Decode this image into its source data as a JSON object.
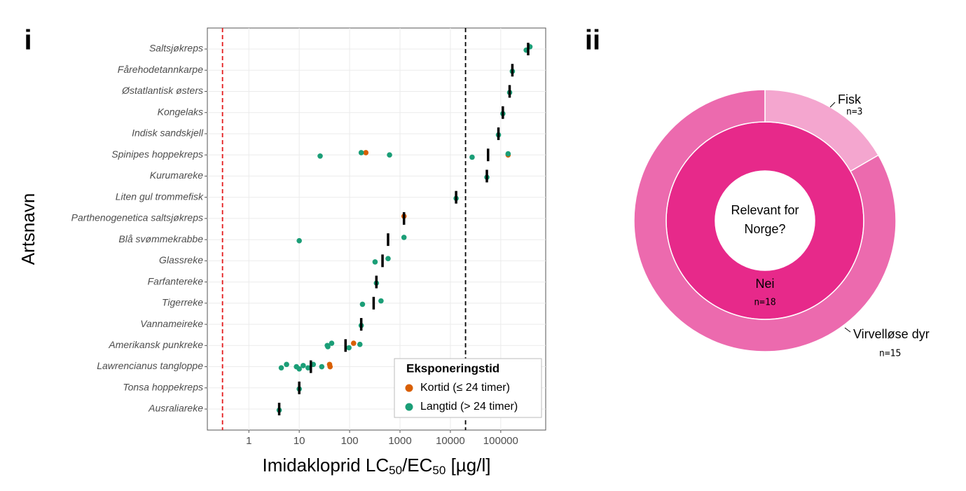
{
  "chart_data": [
    {
      "type": "dot",
      "panel_label": "i",
      "x_label": [
        "Imidakloprid LC",
        "50",
        "/EC",
        "50",
        " [µg/l]"
      ],
      "y_label": "Artsnavn",
      "xscale": "log",
      "xlim": [
        0.15,
        780000
      ],
      "xticks": [
        1,
        10,
        100,
        1000,
        10000,
        100000
      ],
      "grid": true,
      "categories": [
        "Saltsjøkreps",
        "Fårehodetannkarpe",
        "Østatlantisk østers",
        "Kongelaks",
        "Indisk sandskjell",
        "Spinipes hoppekreps",
        "Kurumareke",
        "Liten gul trommefisk",
        "Parthenogenetica saltsjøkreps",
        "Blå svømmekrabbe",
        "Glassreke",
        "Farfantereke",
        "Tigerreke",
        "Vannameireke",
        "Amerikansk punkreke",
        "Lawrencianus tangloppe",
        "Tonsa hoppekreps",
        "Ausraliareke"
      ],
      "series": [
        {
          "name": "Kortid (≤ 24 timer)",
          "color": "#d95f02",
          "values": [
            [],
            [],
            [],
            [],
            [],
            [
              210,
              140000
            ],
            [],
            [],
            [
              1200
            ],
            [],
            [],
            [],
            [],
            [],
            [
              120
            ],
            [
              40,
              41
            ],
            [],
            []
          ]
        },
        {
          "name": "Langtid (> 24 timer)",
          "color": "#1b9e77",
          "values": [
            [
              320000,
              380000
            ],
            [
              170000
            ],
            [
              150000
            ],
            [
              110000
            ],
            [
              90000
            ],
            [
              26,
              170,
              620,
              27000,
              140000
            ],
            [
              53000
            ],
            [
              13000
            ],
            [],
            [
              10,
              1200
            ],
            [
              320,
              580
            ],
            [
              340
            ],
            [
              180,
              420
            ],
            [
              170
            ],
            [
              37,
              44,
              36,
              97,
              160
            ],
            [
              4.4,
              5.6,
              8.8,
              10,
              12,
              15,
              19,
              28
            ],
            [
              10
            ],
            [
              4
            ]
          ]
        },
        {
          "color": "#000000",
          "marker": "bar",
          "values": [
            350000,
            170000,
            150000,
            110000,
            90000,
            56000,
            53000,
            13000,
            1200,
            580,
            450,
            340,
            300,
            170,
            83,
            17,
            10,
            4
          ]
        }
      ],
      "reference_lines": [
        {
          "value": 0.3,
          "color": "#e41a1c"
        },
        {
          "value": 20000,
          "color": "#000000"
        }
      ],
      "legend": {
        "title": "Eksponeringstid",
        "position": "bottom-right"
      }
    },
    {
      "type": "donut",
      "panel_label": "ii",
      "title": "Relevant for Norge?",
      "rings": [
        {
          "categories": [
            "Nei"
          ],
          "values": [
            18
          ],
          "value_labels": [
            "n=18"
          ],
          "colors": [
            "#e7298a"
          ]
        },
        {
          "categories": [
            "Fisk",
            "Virvelløse dyr"
          ],
          "values": [
            3,
            15
          ],
          "value_labels": [
            "n=3",
            "n=15"
          ],
          "colors": [
            "#f4a6cf",
            "#ec6aae"
          ]
        }
      ]
    }
  ]
}
